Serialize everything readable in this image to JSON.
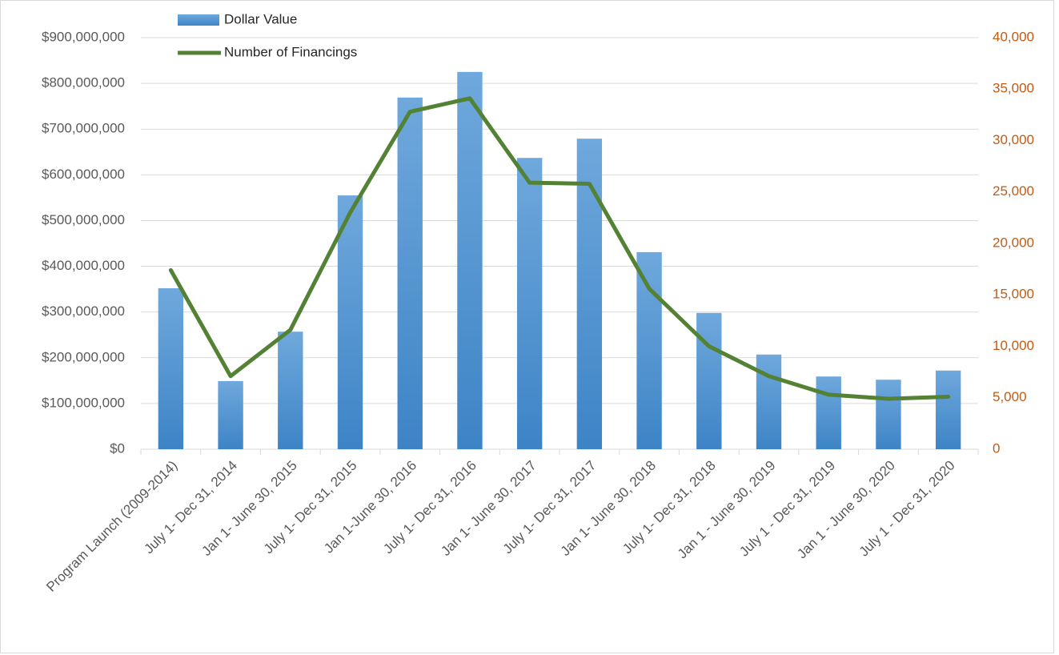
{
  "chart_data": {
    "type": "bar-line",
    "categories": [
      "Program Launch (2009-2014)",
      "July 1- Dec 31, 2014",
      "Jan 1- June 30, 2015",
      "July 1- Dec 31, 2015",
      "Jan 1-June 30, 2016",
      "July 1- Dec 31, 2016",
      "Jan 1- June 30, 2017",
      "July 1- Dec 31, 2017",
      "Jan 1- June 30, 2018",
      "July 1- Dec 31, 2018",
      "Jan 1 - June 30, 2019",
      "July 1 - Dec 31, 2019",
      "Jan 1 - June 30, 2020",
      "July 1 - Dec 31, 2020"
    ],
    "series": [
      {
        "name": "Dollar Value",
        "type": "bar",
        "color": "#5b9bd5",
        "axis": "y",
        "values": [
          352000000,
          149000000,
          257000000,
          555000000,
          769000000,
          825000000,
          637000000,
          679000000,
          431000000,
          298000000,
          207000000,
          159000000,
          152000000,
          172000000
        ]
      },
      {
        "name": "Number of Financings",
        "type": "line",
        "color": "#548235",
        "axis": "y2",
        "values": [
          17400,
          7100,
          11600,
          23000,
          32800,
          34100,
          25900,
          25800,
          15600,
          10000,
          7100,
          5300,
          4900,
          5100
        ]
      }
    ],
    "ylim": [
      0,
      900000000
    ],
    "yticks": [
      {
        "value": 0,
        "label": "$0"
      },
      {
        "value": 100000000,
        "label": "$100,000,000"
      },
      {
        "value": 200000000,
        "label": "$200,000,000"
      },
      {
        "value": 300000000,
        "label": "$300,000,000"
      },
      {
        "value": 400000000,
        "label": "$400,000,000"
      },
      {
        "value": 500000000,
        "label": "$500,000,000"
      },
      {
        "value": 600000000,
        "label": "$600,000,000"
      },
      {
        "value": 700000000,
        "label": "$700,000,000"
      },
      {
        "value": 800000000,
        "label": "$800,000,000"
      },
      {
        "value": 900000000,
        "label": "$900,000,000"
      }
    ],
    "y2lim": [
      0,
      40000
    ],
    "y2ticks": [
      0,
      {
        "value": 5000,
        "label": "5,000"
      },
      {
        "value": 10000,
        "label": "10,000"
      },
      {
        "value": 15000,
        "label": "15,000"
      },
      {
        "value": 20000,
        "label": "20,000"
      },
      {
        "value": 25000,
        "label": "25,000"
      },
      {
        "value": 30000,
        "label": "30,000"
      },
      {
        "value": 35000,
        "label": "35,000"
      },
      {
        "value": 40000,
        "label": "40,000"
      }
    ],
    "y2tick_color": "#c55a11",
    "grid": true,
    "legend": "top-left"
  }
}
